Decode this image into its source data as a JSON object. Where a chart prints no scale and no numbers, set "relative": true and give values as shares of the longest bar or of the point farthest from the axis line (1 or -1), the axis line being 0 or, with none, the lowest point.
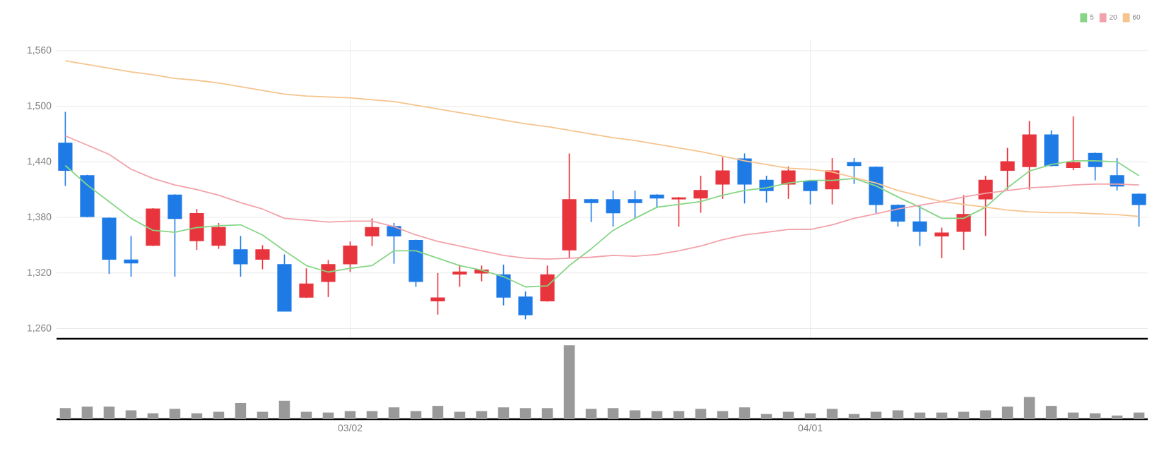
{
  "chart_data": [
    {
      "type": "candlestick",
      "categories": [
        null,
        null,
        null,
        null,
        null,
        null,
        null,
        null,
        null,
        null,
        null,
        null,
        null,
        null,
        null,
        null,
        null,
        null,
        null,
        null,
        null,
        null,
        null,
        null,
        null,
        null,
        null,
        null,
        null,
        null,
        null,
        null,
        null,
        null,
        null,
        null,
        null,
        null,
        null,
        null,
        null,
        null,
        null,
        null,
        null,
        null,
        null,
        null,
        null,
        null
      ],
      "ohlc": [
        [
          1460,
          1494,
          1414,
          1431
        ],
        [
          1425,
          1426,
          1380,
          1381
        ],
        [
          1379,
          1380,
          1319,
          1335
        ],
        [
          1334,
          1360,
          1316,
          1331
        ],
        [
          1350,
          1390,
          1349,
          1389
        ],
        [
          1404,
          1405,
          1316,
          1379
        ],
        [
          1355,
          1389,
          1345,
          1384
        ],
        [
          1350,
          1374,
          1346,
          1369
        ],
        [
          1345,
          1360,
          1316,
          1330
        ],
        [
          1335,
          1350,
          1324,
          1345
        ],
        [
          1329,
          1340,
          1279,
          1279
        ],
        [
          1294,
          1325,
          1293,
          1308
        ],
        [
          1311,
          1334,
          1294,
          1329
        ],
        [
          1330,
          1354,
          1321,
          1349
        ],
        [
          1360,
          1379,
          1349,
          1369
        ],
        [
          1370,
          1374,
          1330,
          1360
        ],
        [
          1355,
          1356,
          1305,
          1311
        ],
        [
          1290,
          1320,
          1275,
          1293
        ],
        [
          1319,
          1329,
          1305,
          1321
        ],
        [
          1320,
          1328,
          1311,
          1323
        ],
        [
          1318,
          1329,
          1285,
          1294
        ],
        [
          1294,
          1300,
          1270,
          1275
        ],
        [
          1290,
          1328,
          1289,
          1318
        ],
        [
          1345,
          1449,
          1336,
          1399
        ],
        [
          1399,
          1400,
          1375,
          1396
        ],
        [
          1399,
          1409,
          1370,
          1385
        ],
        [
          1399,
          1409,
          1379,
          1396
        ],
        [
          1404,
          1405,
          1390,
          1401
        ],
        [
          1400,
          1402,
          1370,
          1401
        ],
        [
          1401,
          1425,
          1385,
          1409
        ],
        [
          1416,
          1445,
          1400,
          1430
        ],
        [
          1443,
          1449,
          1395,
          1416
        ],
        [
          1420,
          1425,
          1396,
          1409
        ],
        [
          1416,
          1435,
          1400,
          1430
        ],
        [
          1419,
          1420,
          1394,
          1409
        ],
        [
          1411,
          1444,
          1394,
          1430
        ],
        [
          1439,
          1444,
          1416,
          1436
        ],
        [
          1434,
          1435,
          1384,
          1394
        ],
        [
          1393,
          1394,
          1370,
          1376
        ],
        [
          1375,
          1393,
          1349,
          1365
        ],
        [
          1360,
          1369,
          1336,
          1363
        ],
        [
          1365,
          1404,
          1345,
          1383
        ],
        [
          1400,
          1425,
          1360,
          1420
        ],
        [
          1431,
          1455,
          1410,
          1440
        ],
        [
          1435,
          1484,
          1410,
          1469
        ],
        [
          1469,
          1474,
          1435,
          1436
        ],
        [
          1434,
          1489,
          1431,
          1439
        ],
        [
          1449,
          1450,
          1420,
          1435
        ],
        [
          1425,
          1444,
          1409,
          1414
        ],
        [
          1405,
          1406,
          1370,
          1394
        ]
      ],
      "colors": [
        "#1e7be6",
        "#1e7be6",
        "#1e7be6",
        "#1e7be6",
        "#e8343c",
        "#1e7be6",
        "#e8343c",
        "#e8343c",
        "#1e7be6",
        "#e8343c",
        "#1e7be6",
        "#e8343c",
        "#e8343c",
        "#e8343c",
        "#e8343c",
        "#1e7be6",
        "#1e7be6",
        "#e8343c",
        "#e8343c",
        "#e8343c",
        "#1e7be6",
        "#1e7be6",
        "#e8343c",
        "#e8343c",
        "#1e7be6",
        "#1e7be6",
        "#1e7be6",
        "#1e7be6",
        "#e8343c",
        "#e8343c",
        "#e8343c",
        "#1e7be6",
        "#1e7be6",
        "#e8343c",
        "#1e7be6",
        "#e8343c",
        "#1e7be6",
        "#1e7be6",
        "#1e7be6",
        "#1e7be6",
        "#e8343c",
        "#e8343c",
        "#e8343c",
        "#e8343c",
        "#e8343c",
        "#1e7be6",
        "#e8343c",
        "#1e7be6",
        "#1e7be6",
        "#1e7be6"
      ],
      "series": [
        {
          "name": "5",
          "type": "line",
          "color": "#86d686",
          "values": [
            1436,
            1415,
            1397,
            1379,
            1366,
            1364,
            1369,
            1371,
            1372,
            1361,
            1344,
            1328,
            1321,
            1325,
            1328,
            1344,
            1344,
            1336,
            1328,
            1323,
            1316,
            1305,
            1306,
            1328,
            1346,
            1366,
            1379,
            1391,
            1394,
            1397,
            1404,
            1409,
            1412,
            1417,
            1420,
            1420,
            1422,
            1414,
            1402,
            1391,
            1379,
            1379,
            1391,
            1412,
            1430,
            1437,
            1441,
            1441,
            1440,
            1425
          ]
        },
        {
          "name": "20",
          "type": "line",
          "color": "#f2a2aa",
          "values": [
            1468,
            1458,
            1448,
            1432,
            1422,
            1415,
            1410,
            1404,
            1396,
            1389,
            1379,
            1377,
            1375,
            1376,
            1376,
            1370,
            1361,
            1354,
            1349,
            1344,
            1339,
            1336,
            1335,
            1336,
            1337,
            1339,
            1338,
            1340,
            1344,
            1349,
            1356,
            1361,
            1364,
            1367,
            1367,
            1372,
            1379,
            1384,
            1389,
            1393,
            1397,
            1402,
            1406,
            1409,
            1412,
            1413,
            1415,
            1416,
            1416,
            1415
          ]
        },
        {
          "name": "60",
          "type": "line",
          "color": "#f6c48e",
          "values": [
            1549,
            1545,
            1541,
            1537,
            1534,
            1530,
            1528,
            1525,
            1521,
            1517,
            1513,
            1511,
            1510,
            1509,
            1507,
            1505,
            1501,
            1497,
            1493,
            1489,
            1485,
            1481,
            1478,
            1474,
            1470,
            1466,
            1463,
            1459,
            1455,
            1451,
            1446,
            1441,
            1437,
            1433,
            1432,
            1429,
            1423,
            1417,
            1409,
            1403,
            1397,
            1394,
            1391,
            1388,
            1386,
            1385,
            1385,
            1384,
            1383,
            1381
          ]
        }
      ],
      "ylim": [
        1249,
        1572
      ],
      "yticks": [
        {
          "value": 1260,
          "label": "1,260"
        },
        {
          "value": 1320,
          "label": "1,320"
        },
        {
          "value": 1380,
          "label": "1,380"
        },
        {
          "value": 1440,
          "label": "1,440"
        },
        {
          "value": 1500,
          "label": "1,500"
        },
        {
          "value": 1560,
          "label": "1,560"
        }
      ],
      "grid": true,
      "legend": "top right",
      "tick_labels": "y"
    },
    {
      "type": "bar",
      "relative": true,
      "color": "#999999",
      "tick_labels": "x",
      "categories": [
        null,
        null,
        null,
        null,
        null,
        null,
        null,
        null,
        null,
        null,
        null,
        null,
        null,
        "03/02",
        null,
        null,
        null,
        null,
        null,
        null,
        null,
        null,
        null,
        null,
        null,
        null,
        null,
        null,
        null,
        null,
        null,
        null,
        null,
        null,
        "04/01",
        null,
        null,
        null,
        null,
        null,
        null,
        null,
        null,
        null,
        null,
        null,
        null,
        null,
        null,
        null
      ],
      "values": [
        0.15,
        0.17,
        0.17,
        0.12,
        0.08,
        0.14,
        0.08,
        0.1,
        0.22,
        0.1,
        0.25,
        0.1,
        0.09,
        0.11,
        0.11,
        0.16,
        0.11,
        0.18,
        0.1,
        0.11,
        0.16,
        0.15,
        0.15,
        1,
        0.14,
        0.15,
        0.12,
        0.11,
        0.11,
        0.14,
        0.11,
        0.16,
        0.07,
        0.1,
        0.08,
        0.14,
        0.07,
        0.1,
        0.12,
        0.09,
        0.09,
        0.1,
        0.12,
        0.17,
        0.3,
        0.18,
        0.09,
        0.08,
        0.05,
        0.09
      ]
    }
  ]
}
